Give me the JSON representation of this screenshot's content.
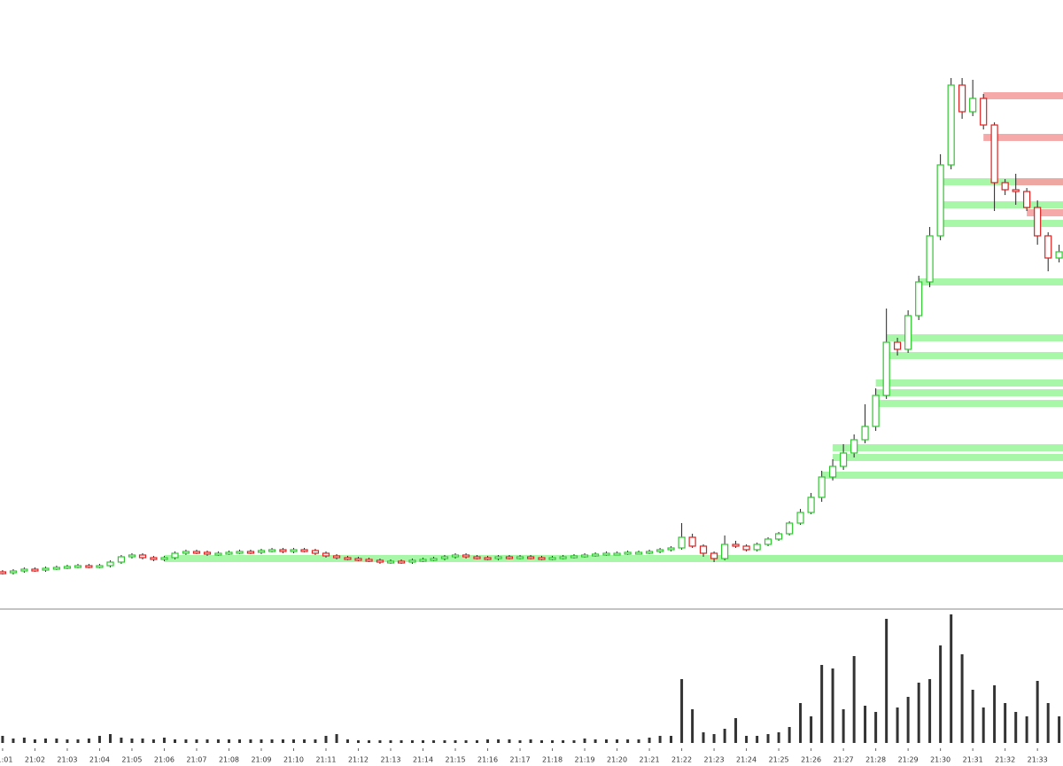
{
  "chart_data": {
    "type": "candlestick",
    "x": [
      1,
      1.33,
      1.67,
      2,
      2.33,
      2.67,
      3,
      3.33,
      3.67,
      4,
      4.33,
      4.67,
      5,
      5.33,
      5.67,
      6,
      6.33,
      6.67,
      7,
      7.33,
      7.67,
      8,
      8.33,
      8.67,
      9,
      9.33,
      9.67,
      10,
      10.33,
      10.67,
      11,
      11.33,
      11.67,
      12,
      12.33,
      12.67,
      13,
      13.33,
      13.67,
      14,
      14.33,
      14.67,
      15,
      15.33,
      15.67,
      16,
      16.33,
      16.67,
      17,
      17.33,
      17.67,
      18,
      18.33,
      18.67,
      19,
      19.33,
      19.67,
      20,
      20.33,
      20.67,
      21,
      21.33,
      21.67,
      22,
      22.33,
      22.67,
      23,
      23.33,
      23.67,
      24,
      24.33,
      24.67,
      25,
      25.33,
      25.67,
      26,
      26.33,
      26.67,
      27,
      27.33,
      27.67,
      28,
      28.33,
      28.67,
      29,
      29.33,
      29.67,
      30,
      30.33,
      30.67,
      31,
      31.33,
      31.67,
      32,
      32.33,
      32.67,
      33,
      33.33,
      33.67
    ],
    "open": [
      41,
      40,
      42,
      44,
      43,
      45,
      46,
      47,
      48,
      47,
      48,
      52,
      58,
      60,
      57,
      55,
      57,
      62,
      64,
      63,
      61,
      62,
      63,
      64,
      63,
      65,
      66,
      64,
      66,
      65,
      62,
      59,
      57,
      56,
      55,
      54,
      52,
      53,
      52,
      54,
      55,
      56,
      58,
      60,
      58,
      57,
      56,
      58,
      57,
      58,
      57,
      56,
      57,
      58,
      59,
      60,
      61,
      62,
      62,
      63,
      63,
      64,
      66,
      68,
      80,
      70,
      62,
      56,
      72,
      70,
      66,
      72,
      78,
      84,
      96,
      108,
      125,
      148,
      160,
      175,
      190,
      205,
      240,
      300,
      292,
      330,
      368,
      420,
      500,
      590,
      560,
      575,
      545,
      480,
      472,
      470,
      452,
      420,
      395
    ],
    "high": [
      43,
      44,
      46,
      46,
      47,
      48,
      49,
      50,
      50,
      50,
      54,
      60,
      62,
      62,
      59,
      59,
      64,
      66,
      66,
      65,
      64,
      65,
      66,
      66,
      67,
      68,
      68,
      68,
      68,
      67,
      64,
      61,
      59,
      58,
      57,
      56,
      55,
      55,
      56,
      57,
      58,
      60,
      62,
      62,
      60,
      59,
      60,
      60,
      60,
      60,
      59,
      59,
      60,
      61,
      62,
      63,
      64,
      64,
      65,
      65,
      66,
      68,
      70,
      96,
      84,
      72,
      64,
      82,
      76,
      72,
      74,
      80,
      86,
      98,
      112,
      130,
      155,
      168,
      185,
      196,
      230,
      248,
      338,
      305,
      336,
      375,
      430,
      512,
      598,
      598,
      596,
      580,
      548,
      484,
      490,
      474,
      460,
      424,
      410
    ],
    "low": [
      38,
      38,
      40,
      41,
      41,
      43,
      44,
      45,
      45,
      45,
      46,
      50,
      56,
      55,
      53,
      53,
      55,
      60,
      61,
      59,
      59,
      60,
      61,
      61,
      61,
      63,
      62,
      62,
      63,
      60,
      57,
      55,
      54,
      53,
      52,
      50,
      50,
      50,
      50,
      52,
      53,
      54,
      56,
      56,
      55,
      54,
      54,
      55,
      55,
      55,
      54,
      54,
      55,
      56,
      57,
      58,
      59,
      60,
      60,
      61,
      61,
      62,
      64,
      66,
      68,
      58,
      52,
      54,
      68,
      64,
      64,
      70,
      76,
      82,
      94,
      106,
      120,
      144,
      156,
      170,
      186,
      200,
      236,
      285,
      288,
      325,
      362,
      415,
      495,
      552,
      555,
      540,
      448,
      466,
      455,
      448,
      410,
      380,
      390
    ],
    "close": [
      40,
      42,
      44,
      43,
      45,
      46,
      47,
      48,
      47,
      48,
      52,
      58,
      60,
      57,
      55,
      57,
      62,
      64,
      63,
      61,
      62,
      63,
      64,
      63,
      65,
      66,
      64,
      66,
      65,
      62,
      59,
      57,
      56,
      55,
      54,
      52,
      53,
      52,
      54,
      55,
      56,
      58,
      60,
      58,
      57,
      56,
      58,
      57,
      58,
      57,
      56,
      57,
      58,
      59,
      60,
      61,
      62,
      62,
      63,
      63,
      64,
      66,
      68,
      80,
      70,
      62,
      56,
      72,
      70,
      66,
      72,
      78,
      84,
      96,
      108,
      125,
      148,
      160,
      175,
      190,
      205,
      240,
      300,
      292,
      330,
      368,
      420,
      500,
      590,
      560,
      575,
      545,
      480,
      472,
      470,
      452,
      420,
      395,
      402
    ],
    "volume": [
      8,
      5,
      6,
      4,
      5,
      5,
      4,
      4,
      5,
      8,
      10,
      6,
      5,
      5,
      4,
      6,
      4,
      4,
      4,
      4,
      4,
      4,
      4,
      4,
      4,
      4,
      4,
      4,
      4,
      4,
      8,
      10,
      4,
      3,
      3,
      3,
      3,
      3,
      3,
      3,
      3,
      3,
      3,
      3,
      3,
      4,
      4,
      4,
      3,
      4,
      3,
      3,
      3,
      3,
      5,
      4,
      4,
      4,
      4,
      4,
      6,
      8,
      8,
      72,
      38,
      12,
      10,
      16,
      28,
      8,
      8,
      10,
      12,
      18,
      45,
      30,
      88,
      84,
      38,
      98,
      42,
      35,
      140,
      40,
      52,
      68,
      72,
      110,
      145,
      100,
      60,
      40,
      65,
      45,
      35,
      30,
      70,
      45,
      30
    ],
    "up_color": "#2ec82e",
    "down_color": "#e02020",
    "volume_color": "#333333",
    "zones": [
      {
        "x": 6,
        "value": 56,
        "color": "#9ef59e"
      },
      {
        "x": 23.33,
        "value": 56,
        "color": "#9ef59e"
      },
      {
        "x": 26.33,
        "value": 150,
        "color": "#9ef59e"
      },
      {
        "x": 26.67,
        "value": 170,
        "color": "#9ef59e"
      },
      {
        "x": 26.67,
        "value": 181,
        "color": "#9ef59e"
      },
      {
        "x": 28,
        "value": 231,
        "color": "#9ef59e"
      },
      {
        "x": 28,
        "value": 243,
        "color": "#9ef59e"
      },
      {
        "x": 28,
        "value": 254,
        "color": "#9ef59e"
      },
      {
        "x": 28.33,
        "value": 285,
        "color": "#9ef59e"
      },
      {
        "x": 28.33,
        "value": 305,
        "color": "#9ef59e"
      },
      {
        "x": 29.33,
        "value": 368,
        "color": "#9ef59e"
      },
      {
        "x": 30,
        "value": 434,
        "color": "#9ef59e"
      },
      {
        "x": 30,
        "value": 455,
        "color": "#9ef59e"
      },
      {
        "x": 30,
        "value": 481,
        "color": "#9ef59e"
      },
      {
        "x": 31.33,
        "value": 578,
        "color": "#f5a0a0"
      },
      {
        "x": 31.33,
        "value": 531,
        "color": "#f5a0a0"
      },
      {
        "x": 32.33,
        "value": 481,
        "color": "#f5a0a0"
      },
      {
        "x": 32.67,
        "value": 446,
        "color": "#f5a0a0"
      }
    ],
    "xlim": [
      0.92,
      33.79
    ],
    "ylim": [
      0,
      686
    ],
    "vlim": [
      0,
      150
    ],
    "xticks": [
      {
        "value": 1,
        "label": "21:01"
      },
      {
        "value": 2,
        "label": "21:02"
      },
      {
        "value": 3,
        "label": "21:03"
      },
      {
        "value": 4,
        "label": "21:04"
      },
      {
        "value": 5,
        "label": "21:05"
      },
      {
        "value": 6,
        "label": "21:06"
      },
      {
        "value": 7,
        "label": "21:07"
      },
      {
        "value": 8,
        "label": "21:08"
      },
      {
        "value": 9,
        "label": "21:09"
      },
      {
        "value": 10,
        "label": "21:10"
      },
      {
        "value": 11,
        "label": "21:11"
      },
      {
        "value": 12,
        "label": "21:12"
      },
      {
        "value": 13,
        "label": "21:13"
      },
      {
        "value": 14,
        "label": "21:14"
      },
      {
        "value": 15,
        "label": "21:15"
      },
      {
        "value": 16,
        "label": "21:16"
      },
      {
        "value": 17,
        "label": "21:17"
      },
      {
        "value": 18,
        "label": "21:18"
      },
      {
        "value": 19,
        "label": "21:19"
      },
      {
        "value": 20,
        "label": "21:20"
      },
      {
        "value": 21,
        "label": "21:21"
      },
      {
        "value": 22,
        "label": "21:22"
      },
      {
        "value": 23,
        "label": "21:23"
      },
      {
        "value": 24,
        "label": "21:24"
      },
      {
        "value": 25,
        "label": "21:25"
      },
      {
        "value": 26,
        "label": "21:26"
      },
      {
        "value": 27,
        "label": "21:27"
      },
      {
        "value": 28,
        "label": "21:28"
      },
      {
        "value": 29,
        "label": "21:29"
      },
      {
        "value": 30,
        "label": "21:30"
      },
      {
        "value": 31,
        "label": "21:31"
      },
      {
        "value": 32,
        "label": "21:32"
      },
      {
        "value": 33,
        "label": "21:33"
      }
    ]
  }
}
